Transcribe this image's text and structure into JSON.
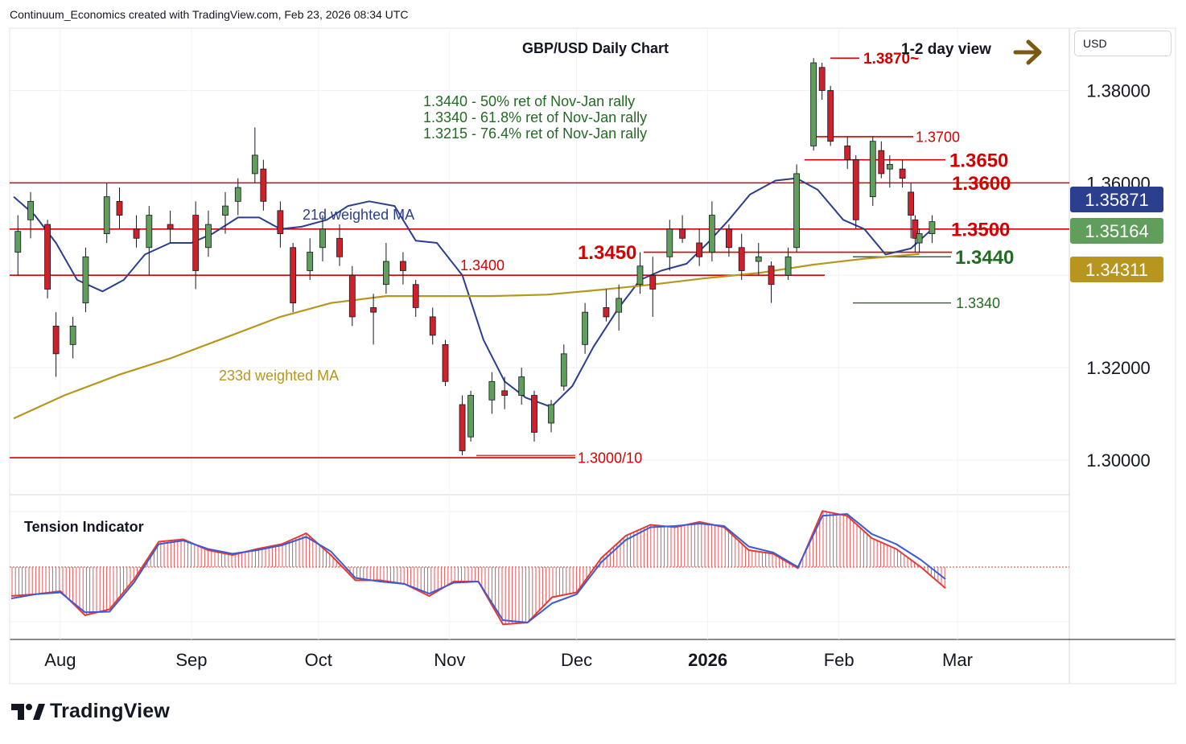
{
  "header": {
    "attribution": "Continuum_Economics created with TradingView.com, Feb 23, 2026 08:34 UTC"
  },
  "currency_selector": {
    "label": "USD"
  },
  "branding": {
    "logo_text": "TradingView"
  },
  "colors": {
    "up_candle": "#5f9e5b",
    "down_candle": "#d0202a",
    "ma21": "#2b3f8e",
    "ma233": "#b8961e",
    "level_line": "#d40000",
    "fib_text": "#236b23",
    "view_arrow": "#7a5a10",
    "price_badge_blue": "#2b3f8e",
    "price_badge_green": "#5f9e5b",
    "price_badge_gold": "#b8961e"
  },
  "chart_data": [
    {
      "type": "candlestick",
      "title": "GBP/USD Daily Chart",
      "view_label": "1-2 day view",
      "view_direction_icon": "arrow-right-icon",
      "x_tick_labels": [
        "Aug",
        "Sep",
        "Oct",
        "Nov",
        "Dec",
        "2026",
        "Feb",
        "Mar"
      ],
      "y_tick_labels": [
        "1.38000",
        "1.36000",
        "1.34000",
        "1.32000",
        "1.30000"
      ],
      "ylim": [
        1.2925,
        1.3935
      ],
      "grid": true,
      "price_badges": [
        "1.35871",
        "1.35164",
        "1.34311"
      ],
      "fib_notes": [
        "1.3440 - 50% ret of Nov-Jan rally",
        "1.3340 - 61.8% ret of Nov-Jan rally",
        "1.3215 - 76.4% ret of Nov-Jan rally"
      ],
      "level_labels": [
        {
          "text": "1.3870~",
          "value": 1.387
        },
        {
          "text": "1.3700",
          "value": 1.37
        },
        {
          "text": "1.3650",
          "value": 1.365
        },
        {
          "text": "1.3600",
          "value": 1.36
        },
        {
          "text": "1.3500",
          "value": 1.35
        },
        {
          "text": "1.3450",
          "value": 1.345
        },
        {
          "text": "1.3440",
          "value": 1.344
        },
        {
          "text": "1.3400",
          "value": 1.34
        },
        {
          "text": "1.3340",
          "value": 1.334
        },
        {
          "text": "1.3000/10",
          "value": 1.3005
        }
      ],
      "series": [
        {
          "name": "21d weighted MA",
          "color": "#2b3f8e",
          "values": [
            1.357,
            1.353,
            1.347,
            1.339,
            1.3365,
            1.339,
            1.3445,
            1.347,
            1.347,
            1.349,
            1.3525,
            1.3525,
            1.35,
            1.3505,
            1.352,
            1.355,
            1.356,
            1.355,
            1.3475,
            1.347,
            1.34,
            1.326,
            1.317,
            1.3135,
            1.3115,
            1.316,
            1.3245,
            1.333,
            1.339,
            1.341,
            1.3425,
            1.347,
            1.352,
            1.3575,
            1.3605,
            1.361,
            1.3585,
            1.352,
            1.35,
            1.3445,
            1.3458,
            1.35
          ]
        },
        {
          "name": "233d weighted MA",
          "color": "#b8961e",
          "values": [
            1.309,
            1.314,
            1.3185,
            1.322,
            1.3265,
            1.331,
            1.334,
            1.3355,
            1.3355,
            1.3355,
            1.3358,
            1.3368,
            1.338,
            1.3393,
            1.3405,
            1.3423,
            1.3436,
            1.3446
          ]
        }
      ],
      "candles": [
        {
          "date": "2025-07-22",
          "open": 1.345,
          "high": 1.353,
          "low": 1.34,
          "close": 1.3495
        },
        {
          "date": "2025-07-25",
          "open": 1.352,
          "high": 1.358,
          "low": 1.348,
          "close": 1.356
        },
        {
          "date": "2025-07-29",
          "open": 1.351,
          "high": 1.352,
          "low": 1.335,
          "close": 1.337
        },
        {
          "date": "2025-07-31",
          "open": 1.329,
          "high": 1.332,
          "low": 1.318,
          "close": 1.323
        },
        {
          "date": "2025-08-04",
          "open": 1.325,
          "high": 1.331,
          "low": 1.322,
          "close": 1.329
        },
        {
          "date": "2025-08-07",
          "open": 1.334,
          "high": 1.346,
          "low": 1.332,
          "close": 1.344
        },
        {
          "date": "2025-08-12",
          "open": 1.349,
          "high": 1.36,
          "low": 1.347,
          "close": 1.357
        },
        {
          "date": "2025-08-15",
          "open": 1.356,
          "high": 1.359,
          "low": 1.35,
          "close": 1.353
        },
        {
          "date": "2025-08-19",
          "open": 1.35,
          "high": 1.353,
          "low": 1.346,
          "close": 1.348
        },
        {
          "date": "2025-08-22",
          "open": 1.346,
          "high": 1.355,
          "low": 1.34,
          "close": 1.353
        },
        {
          "date": "2025-08-27",
          "open": 1.351,
          "high": 1.354,
          "low": 1.347,
          "close": 1.35
        },
        {
          "date": "2025-09-02",
          "open": 1.353,
          "high": 1.356,
          "low": 1.337,
          "close": 1.341
        },
        {
          "date": "2025-09-05",
          "open": 1.346,
          "high": 1.354,
          "low": 1.344,
          "close": 1.351
        },
        {
          "date": "2025-09-09",
          "open": 1.353,
          "high": 1.358,
          "low": 1.349,
          "close": 1.355
        },
        {
          "date": "2025-09-12",
          "open": 1.356,
          "high": 1.361,
          "low": 1.353,
          "close": 1.359
        },
        {
          "date": "2025-09-16",
          "open": 1.362,
          "high": 1.372,
          "low": 1.36,
          "close": 1.366
        },
        {
          "date": "2025-09-18",
          "open": 1.363,
          "high": 1.365,
          "low": 1.354,
          "close": 1.356
        },
        {
          "date": "2025-09-22",
          "open": 1.354,
          "high": 1.356,
          "low": 1.346,
          "close": 1.349
        },
        {
          "date": "2025-09-25",
          "open": 1.346,
          "high": 1.347,
          "low": 1.332,
          "close": 1.334
        },
        {
          "date": "2025-09-29",
          "open": 1.341,
          "high": 1.348,
          "low": 1.339,
          "close": 1.345
        },
        {
          "date": "2025-10-02",
          "open": 1.346,
          "high": 1.353,
          "low": 1.343,
          "close": 1.35
        },
        {
          "date": "2025-10-06",
          "open": 1.348,
          "high": 1.351,
          "low": 1.342,
          "close": 1.344
        },
        {
          "date": "2025-10-09",
          "open": 1.34,
          "high": 1.342,
          "low": 1.329,
          "close": 1.331
        },
        {
          "date": "2025-10-14",
          "open": 1.333,
          "high": 1.336,
          "low": 1.325,
          "close": 1.332
        },
        {
          "date": "2025-10-17",
          "open": 1.338,
          "high": 1.347,
          "low": 1.336,
          "close": 1.343
        },
        {
          "date": "2025-10-21",
          "open": 1.343,
          "high": 1.345,
          "low": 1.338,
          "close": 1.341
        },
        {
          "date": "2025-10-24",
          "open": 1.338,
          "high": 1.339,
          "low": 1.331,
          "close": 1.333
        },
        {
          "date": "2025-10-28",
          "open": 1.331,
          "high": 1.333,
          "low": 1.325,
          "close": 1.327
        },
        {
          "date": "2025-10-31",
          "open": 1.325,
          "high": 1.326,
          "low": 1.316,
          "close": 1.317
        },
        {
          "date": "2025-11-04",
          "open": 1.312,
          "high": 1.314,
          "low": 1.301,
          "close": 1.302
        },
        {
          "date": "2025-11-06",
          "open": 1.305,
          "high": 1.315,
          "low": 1.304,
          "close": 1.314
        },
        {
          "date": "2025-11-11",
          "open": 1.313,
          "high": 1.319,
          "low": 1.31,
          "close": 1.317
        },
        {
          "date": "2025-11-14",
          "open": 1.315,
          "high": 1.318,
          "low": 1.311,
          "close": 1.314
        },
        {
          "date": "2025-11-18",
          "open": 1.314,
          "high": 1.32,
          "low": 1.312,
          "close": 1.318
        },
        {
          "date": "2025-11-21",
          "open": 1.314,
          "high": 1.315,
          "low": 1.304,
          "close": 1.306
        },
        {
          "date": "2025-11-25",
          "open": 1.308,
          "high": 1.313,
          "low": 1.306,
          "close": 1.312
        },
        {
          "date": "2025-11-28",
          "open": 1.316,
          "high": 1.325,
          "low": 1.315,
          "close": 1.323
        },
        {
          "date": "2025-12-03",
          "open": 1.325,
          "high": 1.334,
          "low": 1.323,
          "close": 1.332
        },
        {
          "date": "2025-12-08",
          "open": 1.333,
          "high": 1.337,
          "low": 1.33,
          "close": 1.331
        },
        {
          "date": "2025-12-11",
          "open": 1.332,
          "high": 1.338,
          "low": 1.328,
          "close": 1.335
        },
        {
          "date": "2025-12-16",
          "open": 1.338,
          "high": 1.345,
          "low": 1.336,
          "close": 1.342
        },
        {
          "date": "2025-12-19",
          "open": 1.34,
          "high": 1.344,
          "low": 1.331,
          "close": 1.337
        },
        {
          "date": "2025-12-23",
          "open": 1.344,
          "high": 1.352,
          "low": 1.341,
          "close": 1.35
        },
        {
          "date": "2025-12-26",
          "open": 1.35,
          "high": 1.353,
          "low": 1.347,
          "close": 1.348
        },
        {
          "date": "2025-12-30",
          "open": 1.347,
          "high": 1.35,
          "low": 1.342,
          "close": 1.344
        },
        {
          "date": "2026-01-02",
          "open": 1.345,
          "high": 1.356,
          "low": 1.343,
          "close": 1.353
        },
        {
          "date": "2026-01-06",
          "open": 1.35,
          "high": 1.351,
          "low": 1.344,
          "close": 1.346
        },
        {
          "date": "2026-01-09",
          "open": 1.346,
          "high": 1.349,
          "low": 1.339,
          "close": 1.341
        },
        {
          "date": "2026-01-13",
          "open": 1.343,
          "high": 1.347,
          "low": 1.34,
          "close": 1.344
        },
        {
          "date": "2026-01-16",
          "open": 1.342,
          "high": 1.343,
          "low": 1.334,
          "close": 1.338
        },
        {
          "date": "2026-01-20",
          "open": 1.34,
          "high": 1.346,
          "low": 1.339,
          "close": 1.344
        },
        {
          "date": "2026-01-22",
          "open": 1.346,
          "high": 1.364,
          "low": 1.345,
          "close": 1.362
        },
        {
          "date": "2026-01-26",
          "open": 1.368,
          "high": 1.387,
          "low": 1.367,
          "close": 1.386
        },
        {
          "date": "2026-01-28",
          "open": 1.385,
          "high": 1.386,
          "low": 1.378,
          "close": 1.38
        },
        {
          "date": "2026-01-30",
          "open": 1.38,
          "high": 1.381,
          "low": 1.368,
          "close": 1.369
        },
        {
          "date": "2026-02-03",
          "open": 1.368,
          "high": 1.37,
          "low": 1.363,
          "close": 1.365
        },
        {
          "date": "2026-02-05",
          "open": 1.365,
          "high": 1.366,
          "low": 1.35,
          "close": 1.352
        },
        {
          "date": "2026-02-09",
          "open": 1.357,
          "high": 1.37,
          "low": 1.355,
          "close": 1.369
        },
        {
          "date": "2026-02-11",
          "open": 1.367,
          "high": 1.369,
          "low": 1.361,
          "close": 1.362
        },
        {
          "date": "2026-02-13",
          "open": 1.363,
          "high": 1.366,
          "low": 1.359,
          "close": 1.364
        },
        {
          "date": "2026-02-16",
          "open": 1.363,
          "high": 1.365,
          "low": 1.359,
          "close": 1.361
        },
        {
          "date": "2026-02-18",
          "open": 1.358,
          "high": 1.36,
          "low": 1.348,
          "close": 1.353
        },
        {
          "date": "2026-02-19",
          "open": 1.352,
          "high": 1.353,
          "low": 1.345,
          "close": 1.348
        },
        {
          "date": "2026-02-20",
          "open": 1.347,
          "high": 1.35,
          "low": 1.345,
          "close": 1.349
        },
        {
          "date": "2026-02-23",
          "open": 1.349,
          "high": 1.353,
          "low": 1.347,
          "close": 1.3516
        }
      ]
    },
    {
      "type": "line",
      "title": "Tension Indicator",
      "x_tick_labels": [
        "Aug",
        "Sep",
        "Oct",
        "Nov",
        "Dec",
        "2026",
        "Feb",
        "Mar"
      ],
      "ylim": [
        -1.0,
        1.0
      ],
      "grid": true,
      "series": [
        {
          "name": "",
          "color": "#e53935",
          "values": [
            -0.48,
            -0.45,
            -0.4,
            -0.8,
            -0.7,
            -0.2,
            0.42,
            0.46,
            0.28,
            0.2,
            0.3,
            0.38,
            0.56,
            0.2,
            -0.22,
            -0.22,
            -0.28,
            -0.48,
            -0.24,
            -0.24,
            -0.95,
            -0.92,
            -0.5,
            -0.42,
            0.15,
            0.52,
            0.7,
            0.66,
            0.75,
            0.66,
            0.28,
            0.22,
            -0.02,
            0.93,
            0.85,
            0.48,
            0.3,
            0.0,
            -0.35
          ]
        },
        {
          "name": "",
          "color": "#3b5ad6",
          "values": [
            -0.52,
            -0.45,
            -0.42,
            -0.75,
            -0.74,
            -0.25,
            0.38,
            0.44,
            0.3,
            0.22,
            0.28,
            0.36,
            0.5,
            0.26,
            -0.18,
            -0.24,
            -0.28,
            -0.44,
            -0.26,
            -0.24,
            -0.88,
            -0.92,
            -0.6,
            -0.45,
            0.08,
            0.45,
            0.66,
            0.68,
            0.72,
            0.68,
            0.34,
            0.24,
            0.0,
            0.85,
            0.88,
            0.55,
            0.38,
            0.12,
            -0.2
          ]
        }
      ]
    }
  ]
}
